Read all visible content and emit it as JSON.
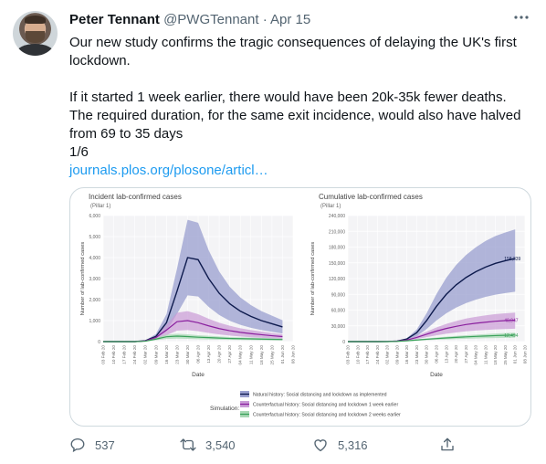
{
  "author": {
    "name": "Peter Tennant",
    "handle": "@PWGTennant",
    "separator": "·",
    "date": "Apr 15"
  },
  "tweet": {
    "line1": "Our new study confirms the tragic consequences of delaying the UK's first lockdown.",
    "line2": "If it started 1 week earlier, there would have been 20k-35k fewer deaths. The required duration, for the same exit incidence, would also have halved from 69 to 35 days",
    "line3": "1/6",
    "link": "journals.plos.org/plosone/articl…"
  },
  "actions": {
    "replies": "537",
    "retweets": "3,540",
    "likes": "5,316"
  },
  "icons": [
    "more-icon",
    "reply-icon",
    "retweet-icon",
    "like-icon",
    "share-icon"
  ],
  "chart_data": [
    {
      "type": "line",
      "title": "Incident lab-confirmed cases",
      "subtitle": "(Pillar 1)",
      "xlabel": "Date",
      "ylabel": "Number of lab-confirmed cases",
      "ylim": [
        0,
        6000
      ],
      "yticks": [
        "0",
        "1,000",
        "2,000",
        "3,000",
        "4,000",
        "5,000",
        "6,000"
      ],
      "xticks": [
        "03 Feb 20",
        "10 Feb 20",
        "17 Feb 20",
        "24 Feb 20",
        "02 Mar 20",
        "09 Mar 20",
        "16 Mar 20",
        "23 Mar 20",
        "30 Mar 20",
        "06 Apr 20",
        "13 Apr 20",
        "20 Apr 20",
        "27 Apr 20",
        "04 May 20",
        "11 May 20",
        "18 May 20",
        "25 May 20",
        "01 Jun 20",
        "08 Jun 20"
      ],
      "series": [
        {
          "name": "Natural history: Social distancing and lockdown as implemented",
          "color": "#0d1a4d",
          "values": [
            0,
            0,
            0,
            0,
            40,
            250,
            900,
            2400,
            4000,
            3900,
            3000,
            2300,
            1800,
            1450,
            1200,
            1000,
            850,
            700,
            null
          ]
        },
        {
          "name": "Counterfactual history: Social distancing and lockdown 1 week earlier",
          "color": "#8a1f9e",
          "values": [
            0,
            0,
            0,
            0,
            30,
            200,
            550,
            950,
            1000,
            900,
            750,
            620,
            520,
            440,
            380,
            330,
            280,
            240,
            null
          ]
        },
        {
          "name": "Counterfactual history: Social distancing and lockdown 2 weeks earlier",
          "color": "#3aa05a",
          "values": [
            0,
            0,
            0,
            0,
            20,
            120,
            230,
            260,
            240,
            210,
            190,
            170,
            150,
            140,
            130,
            120,
            110,
            100,
            null
          ]
        }
      ]
    },
    {
      "type": "line",
      "title": "Cumulative lab-confirmed cases",
      "subtitle": "(Pillar 1)",
      "xlabel": "Date",
      "ylabel": "Number of lab-confirmed cases",
      "ylim": [
        0,
        240000
      ],
      "yticks": [
        "0",
        "30,000",
        "60,000",
        "90,000",
        "120,000",
        "150,000",
        "180,000",
        "210,000",
        "240,000"
      ],
      "xticks": [
        "03 Feb 20",
        "10 Feb 20",
        "17 Feb 20",
        "24 Feb 20",
        "02 Mar 20",
        "09 Mar 20",
        "16 Mar 20",
        "23 Mar 20",
        "30 Mar 20",
        "06 Apr 20",
        "13 Apr 20",
        "20 Apr 20",
        "27 Apr 20",
        "04 May 20",
        "11 May 20",
        "18 May 20",
        "25 May 20",
        "01 Jun 20",
        "08 Jun 20"
      ],
      "end_labels": [
        "158,339",
        "40,947",
        "12,494"
      ],
      "series": [
        {
          "name": "Natural history",
          "color": "#0d1a4d",
          "values": [
            0,
            0,
            0,
            0,
            100,
            1000,
            5000,
            17000,
            40000,
            67000,
            90000,
            108000,
            122000,
            133000,
            142000,
            149000,
            154000,
            158339,
            null
          ]
        },
        {
          "name": "Counterfactual 1 week earlier",
          "color": "#8a1f9e",
          "values": [
            0,
            0,
            0,
            0,
            80,
            700,
            3000,
            8000,
            14000,
            20000,
            25000,
            29000,
            32500,
            35000,
            37000,
            38800,
            40000,
            40947,
            null
          ]
        },
        {
          "name": "Counterfactual 2 weeks earlier",
          "color": "#3aa05a",
          "values": [
            0,
            0,
            0,
            0,
            50,
            400,
            1500,
            3000,
            4500,
            5800,
            7000,
            8100,
            9000,
            9900,
            10700,
            11400,
            12000,
            12494,
            null
          ]
        }
      ]
    }
  ],
  "legend": {
    "label": "Simulation:",
    "items": [
      {
        "text": "Natural history: Social distancing and lockdown as implemented",
        "color": "#0d1a4d",
        "fill": "#9a9fcf"
      },
      {
        "text": "Counterfactual history: Social distancing and lockdown 1 week earlier",
        "color": "#8a1f9e",
        "fill": "#c99ad6"
      },
      {
        "text": "Counterfactual history: Social distancing and lockdown 2 weeks earlier",
        "color": "#3aa05a",
        "fill": "#a7d8b3"
      }
    ]
  }
}
